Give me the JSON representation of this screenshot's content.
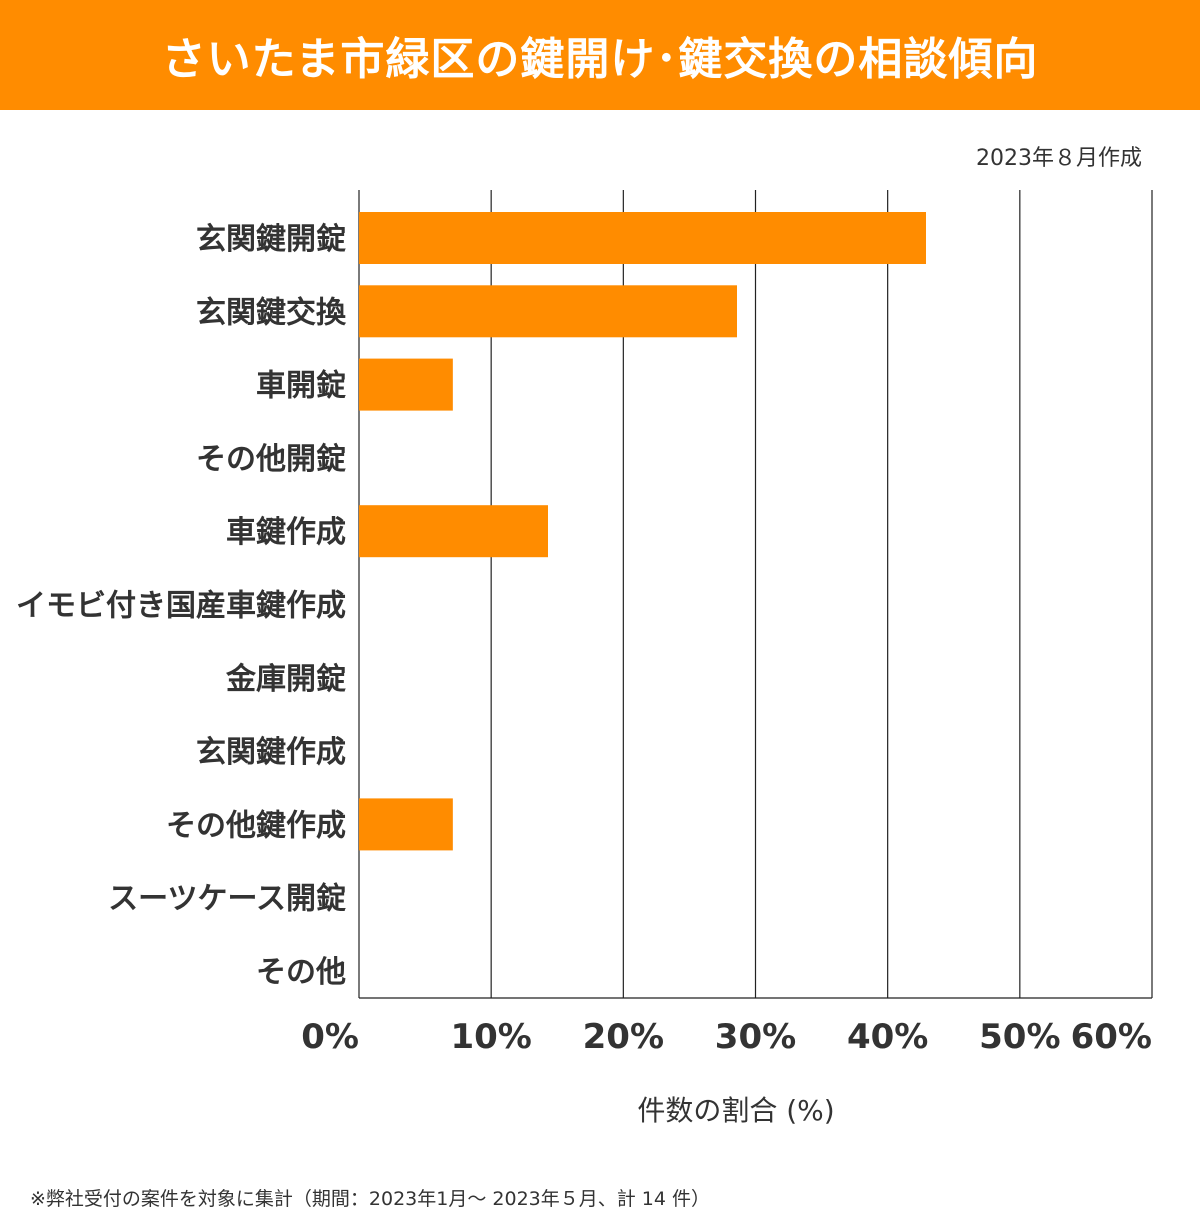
{
  "header": {
    "title": "さいたま市緑区の鍵開け･鍵交換の相談傾向"
  },
  "created_date": "2023年８月作成",
  "footnote": "※弊社受付の案件を対象に集計（期間：2023年1月～ 2023年５月、計 14 件）",
  "colors": {
    "header": "#ff8c00",
    "bar": "#ff8c00",
    "text": "#333333",
    "grid": "#222222"
  },
  "chart_data": {
    "type": "bar",
    "orientation": "horizontal",
    "title": "さいたま市緑区の鍵開け･鍵交換の相談傾向",
    "xlabel": "件数の割合 (%)",
    "ylabel": "",
    "xlim": [
      0,
      60
    ],
    "xticks": [
      0,
      10,
      20,
      30,
      40,
      50,
      60
    ],
    "xtick_labels": [
      "0%",
      "10%",
      "20%",
      "30%",
      "40%",
      "50%",
      "60%"
    ],
    "grid": true,
    "categories": [
      "玄関鍵開錠",
      "玄関鍵交換",
      "車開錠",
      "その他開錠",
      "車鍵作成",
      "イモビ付き国産車鍵作成",
      "金庫開錠",
      "玄関鍵作成",
      "その他鍵作成",
      "スーツケース開錠",
      "その他"
    ],
    "values": [
      42.9,
      28.6,
      7.1,
      0,
      14.3,
      0,
      0,
      0,
      7.1,
      0,
      0
    ]
  }
}
